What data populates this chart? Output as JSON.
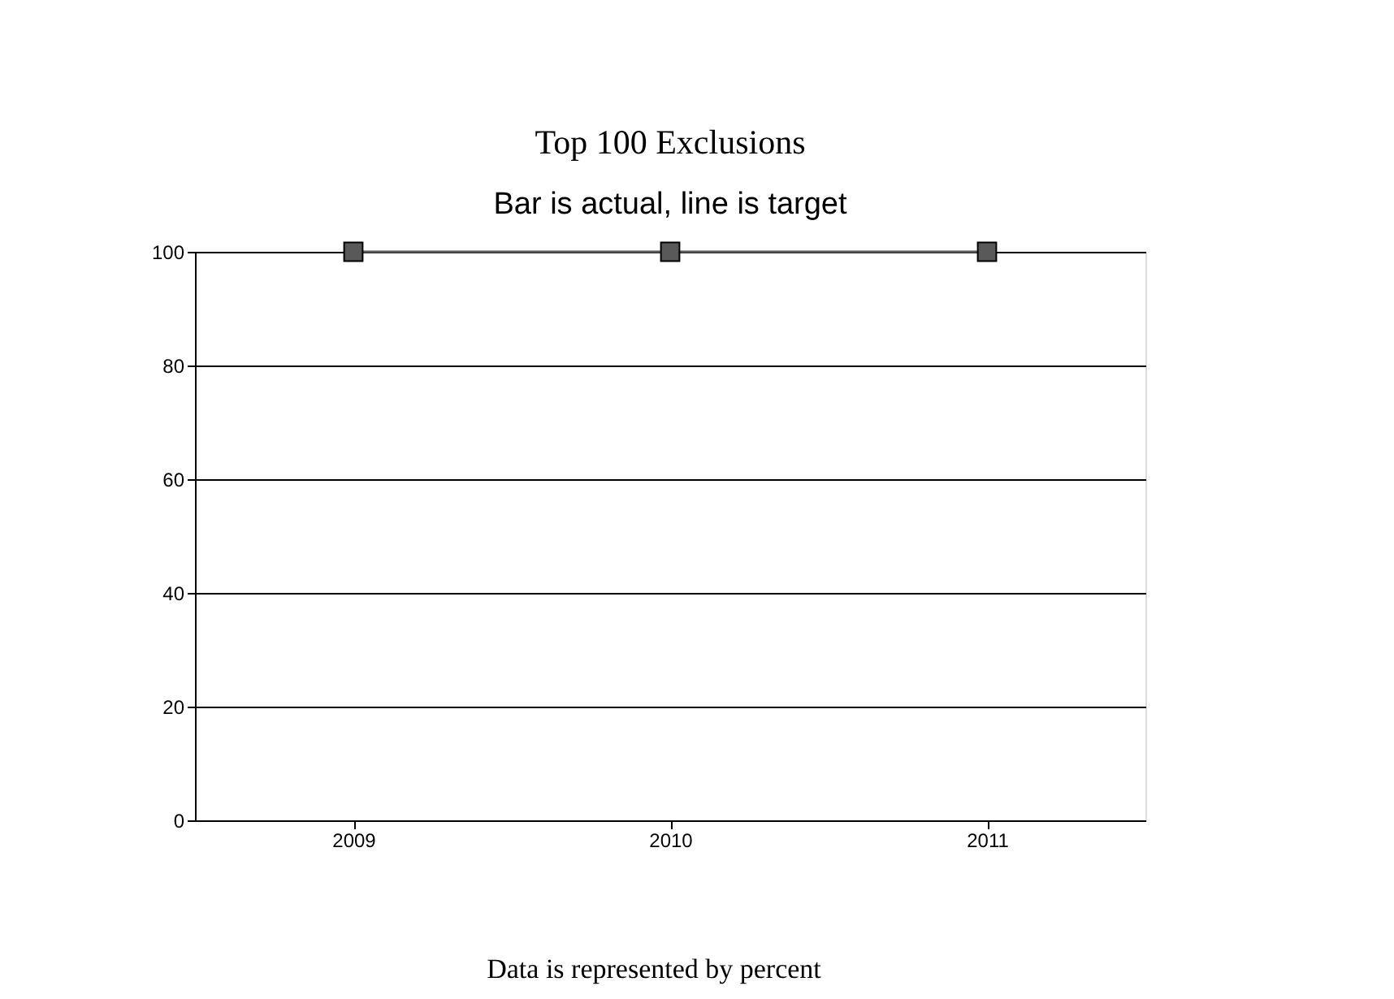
{
  "chart_data": {
    "type": "line",
    "title": "Top 100 Exclusions",
    "subtitle": "Bar is actual, line is target",
    "categories": [
      "2009",
      "2010",
      "2011"
    ],
    "series": [
      {
        "color": "#595959",
        "values": [
          100,
          100,
          100
        ]
      }
    ],
    "ylim": [
      0,
      100
    ],
    "yticks": [
      0,
      20,
      40,
      60,
      80,
      100
    ],
    "grid": "y",
    "marker": "square",
    "line_style": "solid",
    "annotations": [
      "Data is represented by percent"
    ]
  }
}
